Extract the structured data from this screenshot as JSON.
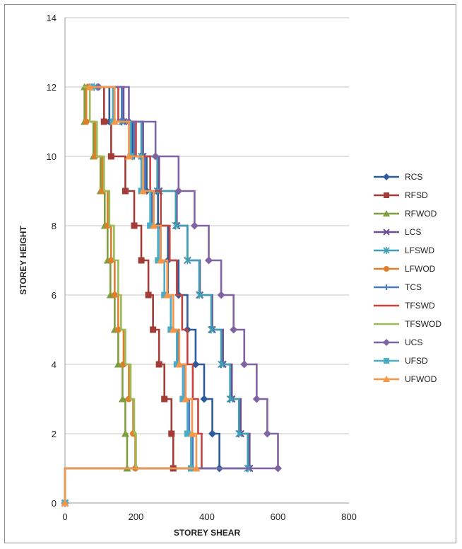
{
  "chart_data": {
    "type": "line",
    "title": "",
    "xlabel": "STOREY SHEAR",
    "ylabel": "STOREY HEIGHT",
    "xlim": [
      0,
      800
    ],
    "ylim": [
      0,
      14
    ],
    "xticks": [
      "0",
      "200",
      "400",
      "600",
      "800"
    ],
    "yticks": [
      "0",
      "2",
      "4",
      "6",
      "8",
      "10",
      "12",
      "14"
    ],
    "grid": "horizontal",
    "legend_position": "right",
    "step": true,
    "series": [
      {
        "name": "RCS",
        "color": "#2e5b9a",
        "marker": "diamond",
        "x": [
          0,
          435,
          415,
          392,
          368,
          345,
          320,
          290,
          262,
          230,
          190,
          125,
          70
        ],
        "y": [
          0,
          1,
          2,
          3,
          4,
          5,
          6,
          7,
          8,
          9,
          10,
          11,
          12
        ]
      },
      {
        "name": "RFSD",
        "color": "#a33b36",
        "marker": "square",
        "x": [
          0,
          305,
          300,
          280,
          265,
          248,
          235,
          215,
          195,
          170,
          130,
          110,
          70
        ],
        "y": [
          0,
          1,
          2,
          3,
          4,
          5,
          6,
          7,
          8,
          9,
          10,
          11,
          12
        ]
      },
      {
        "name": "RFWOD",
        "color": "#7f9f3e",
        "marker": "triangle",
        "x": [
          0,
          175,
          170,
          162,
          150,
          140,
          128,
          120,
          112,
          100,
          80,
          55,
          55
        ],
        "y": [
          0,
          1,
          2,
          3,
          4,
          5,
          6,
          7,
          8,
          9,
          10,
          11,
          12
        ]
      },
      {
        "name": "LCS",
        "color": "#6a4f91",
        "marker": "x",
        "x": [
          0,
          520,
          495,
          470,
          445,
          415,
          380,
          345,
          315,
          265,
          220,
          165,
          85
        ],
        "y": [
          0,
          1,
          2,
          3,
          4,
          5,
          6,
          7,
          8,
          9,
          10,
          11,
          12
        ]
      },
      {
        "name": "LFSWD",
        "color": "#3e9fb5",
        "marker": "star",
        "x": [
          0,
          515,
          490,
          465,
          440,
          412,
          378,
          345,
          312,
          260,
          215,
          160,
          82
        ],
        "y": [
          0,
          1,
          2,
          3,
          4,
          5,
          6,
          7,
          8,
          9,
          10,
          11,
          12
        ]
      },
      {
        "name": "LFWOD",
        "color": "#df7f2c",
        "marker": "circle",
        "x": [
          0,
          198,
          192,
          180,
          165,
          150,
          140,
          130,
          120,
          105,
          85,
          60,
          65
        ],
        "y": [
          0,
          1,
          2,
          3,
          4,
          5,
          6,
          7,
          8,
          9,
          10,
          11,
          12
        ]
      },
      {
        "name": "TCS",
        "color": "#4a7ac2",
        "marker": "plus",
        "x": [
          0,
          360,
          350,
          338,
          320,
          305,
          290,
          268,
          245,
          225,
          195,
          160,
          75
        ],
        "y": [
          0,
          1,
          2,
          3,
          4,
          5,
          6,
          7,
          8,
          9,
          10,
          11,
          12
        ]
      },
      {
        "name": "TFSWD",
        "color": "#c8423d",
        "marker": "line",
        "x": [
          0,
          385,
          375,
          360,
          345,
          330,
          315,
          295,
          270,
          240,
          200,
          150,
          60
        ],
        "y": [
          0,
          1,
          2,
          3,
          4,
          5,
          6,
          7,
          8,
          9,
          10,
          11,
          12
        ]
      },
      {
        "name": "TFSWOD",
        "color": "#9bbb59",
        "marker": "line",
        "x": [
          0,
          200,
          195,
          185,
          170,
          158,
          150,
          138,
          125,
          110,
          90,
          70,
          50
        ],
        "y": [
          0,
          1,
          2,
          3,
          4,
          5,
          6,
          7,
          8,
          9,
          10,
          11,
          12
        ]
      },
      {
        "name": "UCS",
        "color": "#8064a2",
        "marker": "diamond",
        "x": [
          0,
          600,
          570,
          540,
          505,
          475,
          440,
          405,
          365,
          320,
          255,
          180,
          95
        ],
        "y": [
          0,
          1,
          2,
          3,
          4,
          5,
          6,
          7,
          8,
          9,
          10,
          11,
          12
        ]
      },
      {
        "name": "UFSD",
        "color": "#4bacc6",
        "marker": "square",
        "x": [
          0,
          355,
          345,
          332,
          315,
          298,
          280,
          262,
          240,
          215,
          185,
          135,
          75
        ],
        "y": [
          0,
          1,
          2,
          3,
          4,
          5,
          6,
          7,
          8,
          9,
          10,
          11,
          12
        ]
      },
      {
        "name": "UFWOD",
        "color": "#f79646",
        "marker": "triangle",
        "x": [
          0,
          370,
          358,
          340,
          322,
          305,
          288,
          270,
          250,
          220,
          180,
          140,
          70
        ],
        "y": [
          0,
          1,
          2,
          3,
          4,
          5,
          6,
          7,
          8,
          9,
          10,
          11,
          12
        ]
      }
    ]
  }
}
